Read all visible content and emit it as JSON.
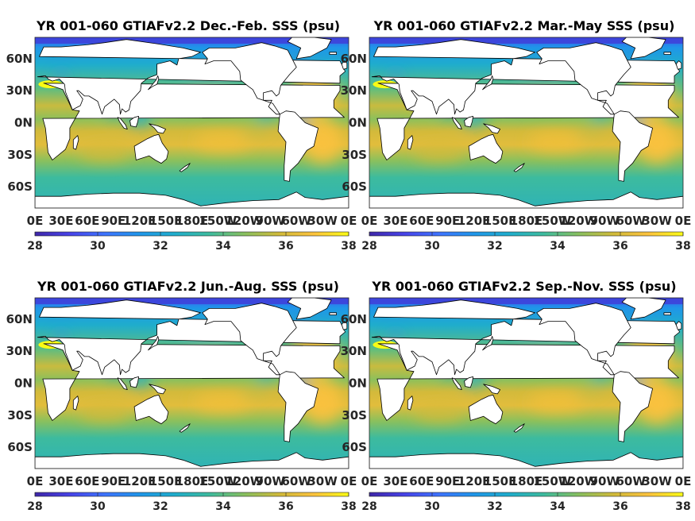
{
  "colormap": [
    "#3e26a8",
    "#4742e7",
    "#3e73fe",
    "#1f96e9",
    "#1fadcc",
    "#3dbb9e",
    "#87bf5f",
    "#d0ba3a",
    "#fcc23d",
    "#f9fb15"
  ],
  "land_color": "#ffffff",
  "panels": [
    {
      "title": "YR 001-060 GTIAFv2.2 Dec.-Feb. SSS (psu)",
      "season": "DJF",
      "lat_ticks": [
        "60N",
        "30N",
        "0N",
        "30S",
        "60S"
      ],
      "lon_ticks": [
        "0E",
        "30E",
        "60E",
        "90E",
        "120E",
        "150E",
        "180E",
        "150W",
        "120W",
        "90W",
        "60W",
        "30W",
        "0E"
      ],
      "colorbar": {
        "ticks": [
          "28",
          "30",
          "32",
          "34",
          "36",
          "38"
        ],
        "min": 28,
        "max": 38
      }
    },
    {
      "title": "YR 001-060 GTIAFv2.2 Mar.-May SSS (psu)",
      "season": "MAM",
      "lat_ticks": [
        "60N",
        "30N",
        "0N",
        "30S",
        "60S"
      ],
      "lon_ticks": [
        "0E",
        "30E",
        "60E",
        "90E",
        "120E",
        "150E",
        "180E",
        "150W",
        "120W",
        "90W",
        "60W",
        "30W",
        "0E"
      ],
      "colorbar": {
        "ticks": [
          "28",
          "30",
          "32",
          "34",
          "36",
          "38"
        ],
        "min": 28,
        "max": 38
      }
    },
    {
      "title": "YR 001-060 GTIAFv2.2 Jun.-Aug. SSS (psu)",
      "season": "JJA",
      "lat_ticks": [
        "60N",
        "30N",
        "0N",
        "30S",
        "60S"
      ],
      "lon_ticks": [
        "0E",
        "30E",
        "60E",
        "90E",
        "120E",
        "150E",
        "180E",
        "150W",
        "120W",
        "90W",
        "60W",
        "30W",
        "0E"
      ],
      "colorbar": {
        "ticks": [
          "28",
          "30",
          "32",
          "34",
          "36",
          "38"
        ],
        "min": 28,
        "max": 38
      }
    },
    {
      "title": "YR 001-060 GTIAFv2.2 Sep.-Nov. SSS (psu)",
      "season": "SON",
      "lat_ticks": [
        "60N",
        "30N",
        "0N",
        "30S",
        "60S"
      ],
      "lon_ticks": [
        "0E",
        "30E",
        "60E",
        "90E",
        "120E",
        "150E",
        "180E",
        "150W",
        "120W",
        "90W",
        "60W",
        "30W",
        "0E"
      ],
      "colorbar": {
        "ticks": [
          "28",
          "30",
          "32",
          "34",
          "36",
          "38"
        ],
        "min": 28,
        "max": 38
      }
    }
  ]
}
